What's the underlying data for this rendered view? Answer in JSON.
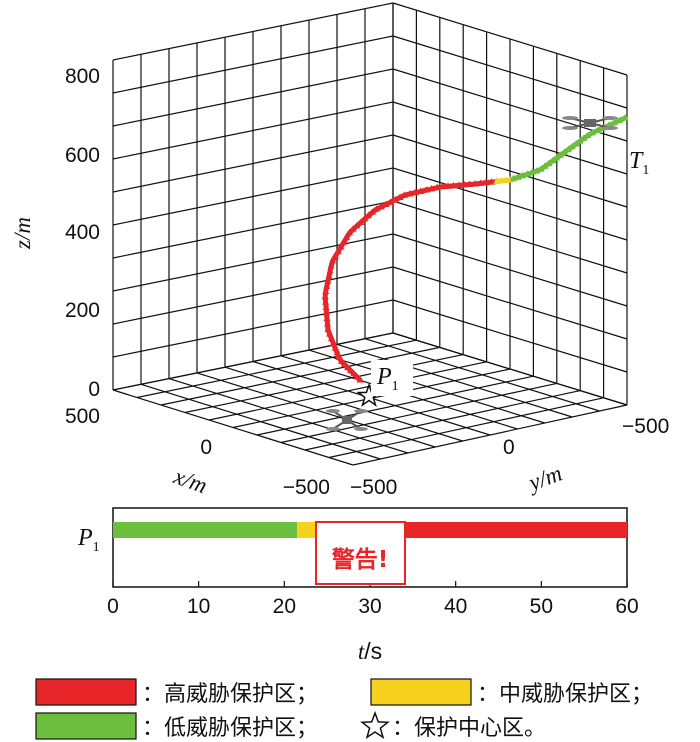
{
  "chart_data": [
    {
      "type": "line3d",
      "zlabel": "z/m",
      "xlabel": "x/m",
      "ylabel": "y/m",
      "z_ticks": [
        0,
        200,
        400,
        600,
        800
      ],
      "x_ticks": [
        "500",
        "0",
        "−500"
      ],
      "y_ticks": [
        "−500",
        "0",
        "−500"
      ],
      "zlim": [
        0,
        800
      ],
      "grid": true,
      "trajectory_segments": [
        {
          "zone": "high",
          "color": "#e8262a",
          "z_start": 10,
          "z_end": 505
        },
        {
          "zone": "mid",
          "color": "#f6d21f",
          "z_start": 505,
          "z_end": 530
        },
        {
          "zone": "low",
          "color": "#6cbf3c",
          "z_start": 530,
          "z_end": 730
        }
      ],
      "labels": {
        "p1_main": "P",
        "p1_sub": "1",
        "t1_main": "T",
        "t1_sub": "1"
      }
    },
    {
      "type": "timeline",
      "row_label_main": "P",
      "row_label_sub": "1",
      "xlim": [
        0,
        60
      ],
      "x_ticks": [
        0,
        10,
        20,
        30,
        40,
        50,
        60
      ],
      "xlabel_main": "t",
      "xlabel_unit": "/s",
      "segments": [
        {
          "zone": "low",
          "color": "#6cbf3c",
          "start": 0,
          "end": 21.5
        },
        {
          "zone": "mid",
          "color": "#f6d21f",
          "start": 21.5,
          "end": 29
        },
        {
          "zone": "high",
          "color": "#e8262a",
          "start": 29,
          "end": 60
        }
      ],
      "warning_text": "警告!"
    }
  ],
  "legend": [
    {
      "color": "#e8262a",
      "label": "：高威胁保护区；"
    },
    {
      "color": "#f6d21f",
      "label": "：中威胁保护区；"
    },
    {
      "color": "#6cbf3c",
      "label": "：低威胁保护区；"
    },
    {
      "symbol": "star",
      "label": "：保护中心区。"
    }
  ]
}
